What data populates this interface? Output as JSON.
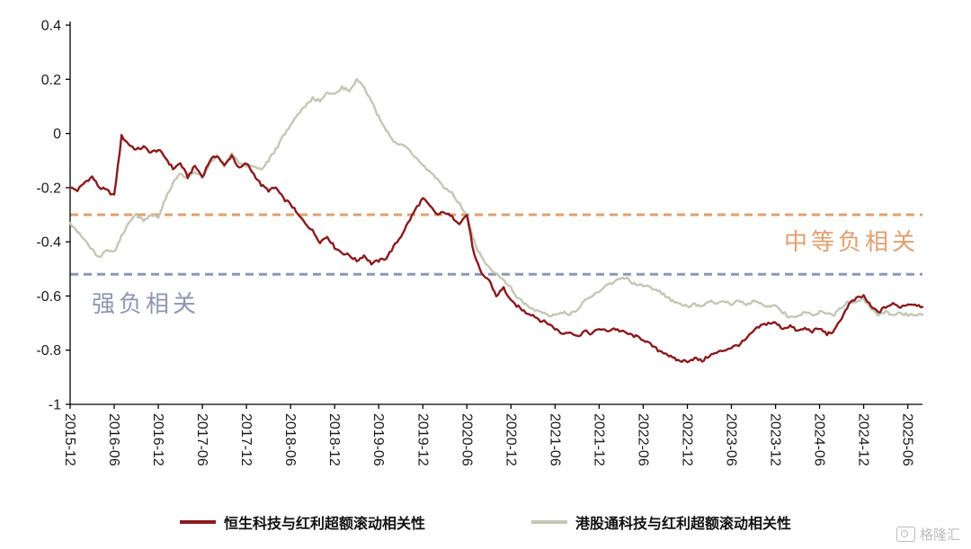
{
  "chart_data": {
    "type": "line",
    "title": "",
    "grid": false,
    "legend_position": "bottom",
    "x_start": "2015-12",
    "x_end": "2025-08",
    "x_interval": "monthly",
    "x_tick_labels": [
      "2015-12",
      "2016-06",
      "2016-12",
      "2017-06",
      "2017-12",
      "2018-06",
      "2018-12",
      "2019-06",
      "2019-12",
      "2020-06",
      "2020-12",
      "2021-06",
      "2021-12",
      "2022-06",
      "2022-12",
      "2023-06",
      "2023-12",
      "2024-06",
      "2024-12",
      "2025-06"
    ],
    "y_ticks": [
      0.4,
      0.2,
      0,
      -0.2,
      -0.4,
      -0.6,
      -0.8,
      -1
    ],
    "y_tick_labels": [
      "0.4",
      "0.2",
      "0",
      "-0.2",
      "-0.4",
      "-0.6",
      "-0.8",
      "-1"
    ],
    "ylim": [
      -1,
      0.4
    ],
    "series": [
      {
        "name": "恒生科技与红利超额滚动相关性",
        "color": "#8A1B1E",
        "values": [
          -0.2,
          -0.21,
          -0.18,
          -0.16,
          -0.2,
          -0.21,
          -0.23,
          -0.01,
          -0.04,
          -0.06,
          -0.05,
          -0.07,
          -0.06,
          -0.09,
          -0.13,
          -0.11,
          -0.16,
          -0.12,
          -0.16,
          -0.1,
          -0.08,
          -0.12,
          -0.08,
          -0.13,
          -0.11,
          -0.15,
          -0.19,
          -0.21,
          -0.2,
          -0.24,
          -0.26,
          -0.3,
          -0.33,
          -0.36,
          -0.4,
          -0.38,
          -0.42,
          -0.44,
          -0.45,
          -0.47,
          -0.45,
          -0.48,
          -0.47,
          -0.46,
          -0.42,
          -0.38,
          -0.33,
          -0.28,
          -0.24,
          -0.27,
          -0.3,
          -0.29,
          -0.31,
          -0.33,
          -0.3,
          -0.45,
          -0.52,
          -0.54,
          -0.6,
          -0.57,
          -0.62,
          -0.64,
          -0.66,
          -0.67,
          -0.69,
          -0.7,
          -0.72,
          -0.74,
          -0.73,
          -0.75,
          -0.73,
          -0.74,
          -0.72,
          -0.73,
          -0.72,
          -0.73,
          -0.74,
          -0.75,
          -0.76,
          -0.78,
          -0.8,
          -0.81,
          -0.83,
          -0.84,
          -0.84,
          -0.83,
          -0.84,
          -0.82,
          -0.81,
          -0.8,
          -0.79,
          -0.78,
          -0.76,
          -0.73,
          -0.71,
          -0.7,
          -0.7,
          -0.72,
          -0.71,
          -0.73,
          -0.72,
          -0.73,
          -0.72,
          -0.74,
          -0.73,
          -0.68,
          -0.63,
          -0.61,
          -0.6,
          -0.64,
          -0.66,
          -0.64,
          -0.63,
          -0.64,
          -0.63,
          -0.63,
          -0.64
        ]
      },
      {
        "name": "港股通科技与红利超额滚动相关性",
        "color": "#C4C7B3",
        "values": [
          -0.33,
          -0.36,
          -0.39,
          -0.43,
          -0.46,
          -0.43,
          -0.44,
          -0.38,
          -0.33,
          -0.3,
          -0.32,
          -0.3,
          -0.31,
          -0.24,
          -0.18,
          -0.15,
          -0.17,
          -0.14,
          -0.16,
          -0.11,
          -0.08,
          -0.12,
          -0.07,
          -0.11,
          -0.12,
          -0.12,
          -0.13,
          -0.1,
          -0.06,
          -0.01,
          0.03,
          0.07,
          0.1,
          0.13,
          0.12,
          0.15,
          0.15,
          0.17,
          0.16,
          0.2,
          0.17,
          0.12,
          0.06,
          0.01,
          -0.03,
          -0.04,
          -0.06,
          -0.09,
          -0.12,
          -0.14,
          -0.17,
          -0.2,
          -0.22,
          -0.26,
          -0.3,
          -0.4,
          -0.46,
          -0.49,
          -0.52,
          -0.54,
          -0.57,
          -0.61,
          -0.63,
          -0.65,
          -0.66,
          -0.67,
          -0.67,
          -0.66,
          -0.67,
          -0.65,
          -0.62,
          -0.6,
          -0.58,
          -0.56,
          -0.55,
          -0.53,
          -0.54,
          -0.56,
          -0.56,
          -0.57,
          -0.58,
          -0.6,
          -0.62,
          -0.63,
          -0.64,
          -0.63,
          -0.64,
          -0.62,
          -0.63,
          -0.62,
          -0.63,
          -0.62,
          -0.63,
          -0.62,
          -0.63,
          -0.64,
          -0.63,
          -0.66,
          -0.68,
          -0.67,
          -0.66,
          -0.67,
          -0.66,
          -0.66,
          -0.67,
          -0.64,
          -0.62,
          -0.62,
          -0.61,
          -0.65,
          -0.67,
          -0.66,
          -0.67,
          -0.66,
          -0.67,
          -0.67,
          -0.67
        ]
      }
    ],
    "reference_lines": [
      {
        "value": -0.3,
        "label": "中等负相关",
        "color": "#E0A070"
      },
      {
        "value": -0.52,
        "label": "强负相关",
        "color": "#8C97B2"
      }
    ]
  },
  "watermark": {
    "text": "格隆汇"
  }
}
